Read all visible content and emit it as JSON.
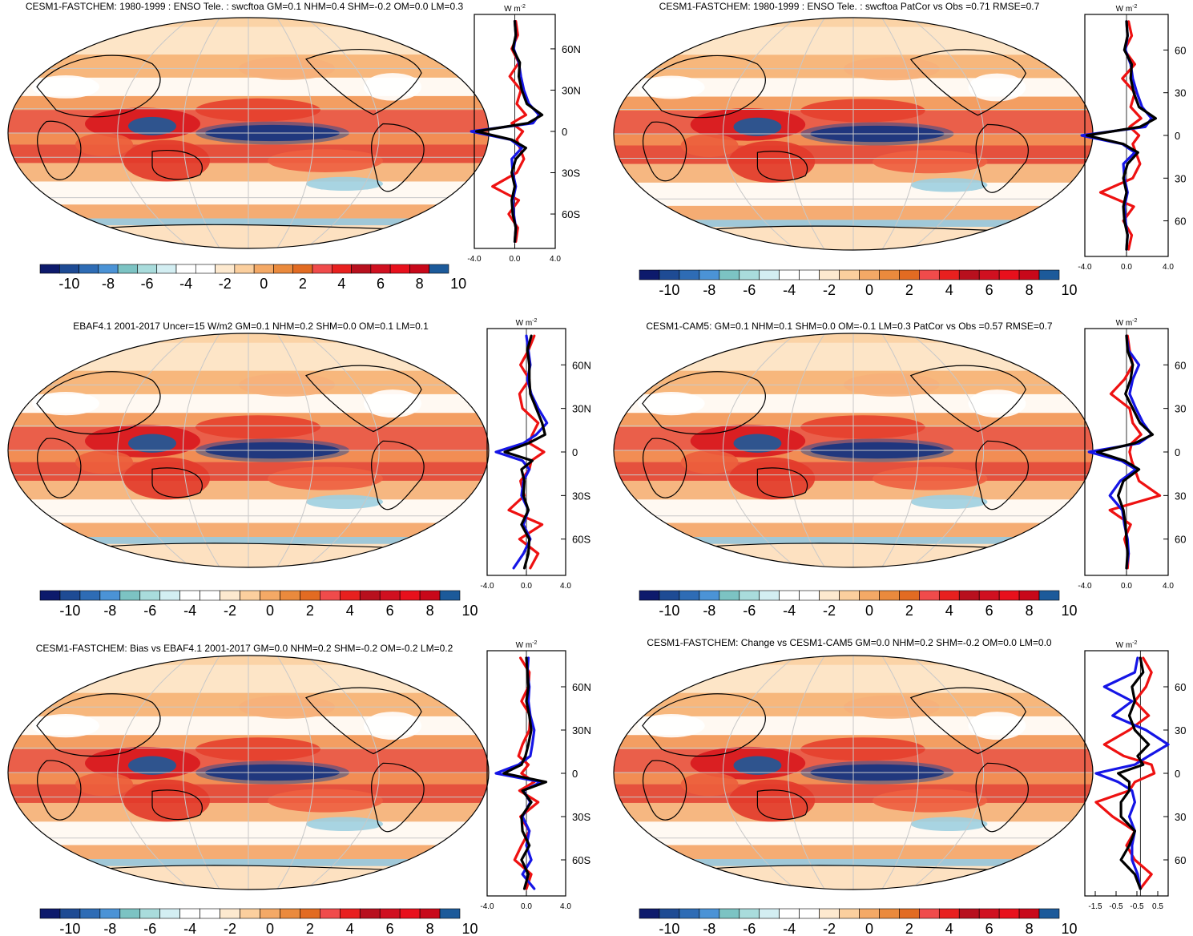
{
  "figure": {
    "colormap": [
      "#0d1a6c",
      "#1e4b94",
      "#2e6cb5",
      "#4b93d6",
      "#7cc3c3",
      "#a9dcdc",
      "#d3eef2",
      "#ffffff",
      "#ffffff",
      "#fde9cf",
      "#fbcf9e",
      "#f4a966",
      "#ea8a3d",
      "#e26b22",
      "#f04b4b",
      "#e8201f",
      "#b8101e",
      "#d01020",
      "#e8101c",
      "#c8081a",
      "#1c5a9a"
    ],
    "colorbar_ticks": [
      "-10",
      "-8",
      "-6",
      "-4",
      "-2",
      "0",
      "2",
      "4",
      "6",
      "8",
      "10"
    ],
    "unit_label": "W m",
    "unit_exponent": "-2",
    "series_colors": {
      "red": "#ee1111",
      "blue": "#1515e6",
      "black": "#000000"
    }
  },
  "chart_data": [
    {
      "type": "heatmap",
      "panel": "top-left",
      "title": "CESM1-FASTCHEM: 1980-1999 : ENSO Tele. : swcftoa GM=0.1 NHM=0.4 SHM=-0.2 OM=0.0 LM=0.3",
      "colorbar_ticks": [
        "-10",
        "-8",
        "-6",
        "-4",
        "-2",
        "0",
        "2",
        "4",
        "6",
        "8",
        "10"
      ],
      "zonal_profile": {
        "lat_ticks": [
          "60N",
          "30N",
          "0",
          "30S",
          "60S"
        ],
        "x_ticks": [
          "-4.0",
          "0.0",
          "4.0"
        ],
        "xlim": [
          -4,
          4
        ],
        "series": [
          {
            "name": "red",
            "lat": [
              80,
              70,
              60,
              50,
              40,
              30,
              20,
              12,
              6,
              0,
              -6,
              -12,
              -20,
              -30,
              -40,
              -50,
              -60,
              -70,
              -80
            ],
            "values": [
              0.1,
              0.3,
              -0.3,
              0.4,
              -0.5,
              0.6,
              0.2,
              1.1,
              -0.3,
              0.8,
              0.2,
              0.5,
              0.9,
              0.2,
              -2.2,
              0.4,
              -0.6,
              0.3,
              0.1
            ]
          },
          {
            "name": "blue",
            "lat": [
              80,
              70,
              60,
              50,
              40,
              30,
              20,
              12,
              6,
              0,
              -6,
              -12,
              -20,
              -30,
              -40,
              -50,
              -60,
              -70,
              -80
            ],
            "values": [
              0,
              0.1,
              -0.1,
              0.4,
              0.6,
              0.9,
              1.4,
              2.4,
              1.8,
              -4.3,
              -0.4,
              0.7,
              -0.3,
              -0.2,
              0.1,
              -0.2,
              -0.1,
              0.1,
              0
            ]
          },
          {
            "name": "black",
            "lat": [
              80,
              70,
              60,
              50,
              40,
              30,
              20,
              12,
              6,
              0,
              -6,
              -12,
              -20,
              -30,
              -40,
              -50,
              -60,
              -70,
              -80
            ],
            "values": [
              0,
              0.1,
              -0.2,
              0.5,
              0.4,
              0.7,
              1.2,
              2.7,
              1.3,
              -3.8,
              -0.3,
              1.1,
              0.1,
              -0.3,
              0,
              -0.3,
              -0.2,
              0.1,
              0
            ]
          }
        ]
      }
    },
    {
      "type": "heatmap",
      "panel": "top-right",
      "title": "CESM1-FASTCHEM: 1980-1999 : ENSO Tele. : swcftoa PatCor vs Obs =0.71 RMSE=0.7",
      "colorbar_ticks": [
        "-10",
        "-8",
        "-6",
        "-4",
        "-2",
        "0",
        "2",
        "4",
        "6",
        "8",
        "10"
      ],
      "zonal_profile": {
        "lat_ticks": [
          "60",
          "30",
          "0",
          "30",
          "60"
        ],
        "x_ticks": [
          "-4.0",
          "0.0",
          "4.0"
        ],
        "xlim": [
          -4,
          4
        ],
        "series": [
          {
            "name": "red",
            "lat": [
              80,
              70,
              60,
              50,
              40,
              30,
              20,
              12,
              6,
              0,
              -6,
              -12,
              -20,
              -30,
              -40,
              -50,
              -60,
              -70,
              -80
            ],
            "values": [
              0.2,
              0.5,
              -0.2,
              0.8,
              -0.4,
              0.8,
              0.4,
              1.4,
              0.3,
              1.2,
              0.6,
              0.9,
              1.3,
              0.6,
              -2.5,
              0.7,
              -0.3,
              0.5,
              0.2
            ]
          },
          {
            "name": "blue",
            "lat": [
              80,
              70,
              60,
              50,
              40,
              30,
              20,
              12,
              6,
              0,
              -6,
              -12,
              -20,
              -30,
              -40,
              -50,
              -60,
              -70,
              -80
            ],
            "values": [
              0,
              0.1,
              -0.1,
              0.4,
              0.6,
              1,
              1.5,
              2.4,
              1.8,
              -4.3,
              -0.4,
              0.8,
              -0.3,
              -0.2,
              0.1,
              -0.2,
              -0.1,
              0.1,
              0
            ]
          },
          {
            "name": "black",
            "lat": [
              80,
              70,
              60,
              50,
              40,
              30,
              20,
              12,
              6,
              0,
              -6,
              -12,
              -20,
              -30,
              -40,
              -50,
              -60,
              -70,
              -80
            ],
            "values": [
              0,
              0.1,
              -0.2,
              0.5,
              0.4,
              0.7,
              1.2,
              2.8,
              1.3,
              -3.8,
              -0.3,
              1.1,
              0.1,
              -0.3,
              0,
              -0.3,
              -0.2,
              0.1,
              0
            ]
          }
        ]
      }
    },
    {
      "type": "heatmap",
      "panel": "middle-left",
      "title": "EBAF4.1 2001-2017 Uncer=15 W/m2 GM=0.1 NHM=0.2 SHM=0.0 OM=0.1 LM=0.1",
      "colorbar_ticks": [
        "-10",
        "-8",
        "-6",
        "-4",
        "-2",
        "0",
        "2",
        "4",
        "6",
        "8",
        "10"
      ],
      "zonal_profile": {
        "lat_ticks": [
          "60N",
          "30N",
          "0",
          "30S",
          "60S"
        ],
        "x_ticks": [
          "-4.0",
          "0.0",
          "4.0"
        ],
        "xlim": [
          -4,
          4
        ],
        "series": [
          {
            "name": "red",
            "lat": [
              80,
              70,
              60,
              50,
              40,
              30,
              20,
              12,
              6,
              0,
              -6,
              -12,
              -20,
              -30,
              -40,
              -50,
              -60,
              -70,
              -80
            ],
            "values": [
              0.8,
              0.2,
              -0.6,
              0.3,
              -0.7,
              -0.4,
              1.2,
              0.6,
              0.3,
              1.8,
              0.5,
              0.3,
              -0.6,
              -0.2,
              -1.8,
              1.6,
              -0.7,
              1.2,
              0.4
            ]
          },
          {
            "name": "blue",
            "lat": [
              80,
              70,
              60,
              50,
              40,
              30,
              20,
              12,
              6,
              0,
              -6,
              -12,
              -20,
              -30,
              -40,
              -50,
              -60,
              -70,
              -80
            ],
            "values": [
              0,
              0.2,
              0.4,
              0.1,
              0.5,
              1.2,
              2.1,
              1,
              -0.3,
              -3.1,
              -0.4,
              0.3,
              -0.3,
              -0.5,
              0.2,
              -0.3,
              0.4,
              -0.3,
              -1.3
            ]
          },
          {
            "name": "black",
            "lat": [
              80,
              70,
              60,
              50,
              40,
              30,
              20,
              12,
              6,
              0,
              -6,
              -12,
              -20,
              -30,
              -40,
              -50,
              -60,
              -70,
              -80
            ],
            "values": [
              0.5,
              0.1,
              0.3,
              0.3,
              0.4,
              1.0,
              1.6,
              1.9,
              0.2,
              -2.2,
              0.6,
              -0.5,
              -0.2,
              -0.3,
              0.2,
              -0.5,
              0.3,
              0.2,
              -0.2
            ]
          }
        ]
      }
    },
    {
      "type": "heatmap",
      "panel": "middle-right",
      "title": "CESM1-CAM5: GM=0.1 NHM=0.1 SHM=0.0 OM=-0.1 LM=0.3 PatCor vs Obs =0.57 RMSE=0.7",
      "colorbar_ticks": [
        "-10",
        "-8",
        "-6",
        "-4",
        "-2",
        "0",
        "2",
        "4",
        "6",
        "8",
        "10"
      ],
      "zonal_profile": {
        "lat_ticks": [
          "60",
          "30",
          "0",
          "30",
          "60"
        ],
        "x_ticks": [
          "-4.0",
          "0.0",
          "4.0"
        ],
        "xlim": [
          -4,
          4
        ],
        "series": [
          {
            "name": "red",
            "lat": [
              80,
              70,
              60,
              50,
              40,
              30,
              20,
              12,
              6,
              0,
              -6,
              -12,
              -20,
              -30,
              -40,
              -50,
              -60,
              -70,
              -80
            ],
            "values": [
              0.1,
              0.3,
              0.6,
              -0.2,
              -1.5,
              0.3,
              0.6,
              1.4,
              0.5,
              0.3,
              0.5,
              0.8,
              1.2,
              3.2,
              -1.6,
              0.4,
              -0.2,
              0.2,
              0.1
            ]
          },
          {
            "name": "blue",
            "lat": [
              80,
              70,
              60,
              50,
              40,
              30,
              20,
              12,
              6,
              0,
              -6,
              -12,
              -20,
              -30,
              -40,
              -50,
              -60,
              -70,
              -80
            ],
            "values": [
              0,
              0.2,
              1.2,
              0.6,
              0.3,
              0.9,
              1.6,
              2.4,
              1.2,
              -3.6,
              -0.5,
              0.9,
              -0.6,
              -1.6,
              -0.4,
              -0.2,
              0.1,
              0.2,
              0
            ]
          },
          {
            "name": "black",
            "lat": [
              80,
              70,
              60,
              50,
              40,
              30,
              20,
              12,
              6,
              0,
              -6,
              -12,
              -20,
              -30,
              -40,
              -50,
              -60,
              -70,
              -80
            ],
            "values": [
              0,
              0.1,
              0.6,
              0.4,
              -0.1,
              0.6,
              1.3,
              2.5,
              0.8,
              -2.8,
              -0.2,
              1.2,
              -0.3,
              -0.8,
              -0.3,
              -0.1,
              0,
              0.1,
              0
            ]
          }
        ]
      }
    },
    {
      "type": "heatmap",
      "panel": "bottom-left",
      "title": "CESM1-FASTCHEM: Bias vs EBAF4.1 2001-2017 GM=0.0 NHM=0.2 SHM=-0.2 OM=-0.2 LM=0.2",
      "colorbar_ticks": [
        "-10",
        "-8",
        "-6",
        "-4",
        "-2",
        "0",
        "2",
        "4",
        "6",
        "8",
        "10"
      ],
      "zonal_profile": {
        "lat_ticks": [
          "60N",
          "30N",
          "0",
          "30S",
          "60S"
        ],
        "x_ticks": [
          "-4.0",
          "0.0",
          "4.0"
        ],
        "xlim": [
          -4,
          4
        ],
        "series": [
          {
            "name": "red",
            "lat": [
              80,
              70,
              60,
              50,
              40,
              30,
              20,
              12,
              6,
              0,
              -6,
              -12,
              -20,
              -30,
              -40,
              -50,
              -60,
              -70,
              -80
            ],
            "values": [
              -0.6,
              0.3,
              0.2,
              -0.5,
              0.4,
              0.3,
              -0.4,
              -0.8,
              0.2,
              -0.5,
              0.8,
              -0.7,
              1.2,
              -0.6,
              0.3,
              -0.5,
              -1.2,
              0.5,
              0
            ]
          },
          {
            "name": "blue",
            "lat": [
              80,
              70,
              60,
              50,
              40,
              30,
              20,
              12,
              6,
              0,
              -6,
              -12,
              -20,
              -30,
              -40,
              -50,
              -60,
              -70,
              -80
            ],
            "values": [
              0.2,
              0.1,
              0.3,
              0.2,
              0.4,
              0.8,
              0.6,
              0.4,
              -0.8,
              -3.1,
              1.5,
              -0.3,
              0.4,
              -0.4,
              0.3,
              0,
              0.5,
              -0.4,
              0.8
            ]
          },
          {
            "name": "black",
            "lat": [
              80,
              70,
              60,
              50,
              40,
              30,
              20,
              12,
              6,
              0,
              -6,
              -12,
              -20,
              -30,
              -40,
              -50,
              -60,
              -70,
              -80
            ],
            "values": [
              0,
              0.1,
              0.2,
              0,
              0.3,
              0.5,
              0.2,
              -0.1,
              -0.5,
              -2.3,
              2.0,
              -0.4,
              0.5,
              -0.5,
              -0.4,
              0.3,
              -0.5,
              0.2,
              -0.2
            ]
          }
        ]
      }
    },
    {
      "type": "heatmap",
      "panel": "bottom-right",
      "title": "CESM1-FASTCHEM: Change vs CESM1-CAM5 GM=0.0 NHM=0.2 SHM=-0.2 OM=0.0 LM=0.0",
      "colorbar_ticks": [
        "-10",
        "-8",
        "-6",
        "-4",
        "-2",
        "0",
        "2",
        "4",
        "6",
        "8",
        "10"
      ],
      "zonal_profile": {
        "lat_ticks": [
          "60",
          "30",
          "0",
          "30",
          "60"
        ],
        "x_ticks": [
          "-1.5",
          "-0.5",
          "-0.5",
          "0.5"
        ],
        "xlim": [
          -2.0,
          1.0
        ],
        "series": [
          {
            "name": "red",
            "lat": [
              80,
              70,
              60,
              50,
              40,
              30,
              20,
              12,
              6,
              0,
              -6,
              -12,
              -20,
              -30,
              -40,
              -50,
              -60,
              -70,
              -80
            ],
            "values": [
              0.1,
              0.4,
              0.2,
              -0.2,
              0.3,
              -0.4,
              -1.3,
              -0.6,
              0.4,
              0.5,
              -0.2,
              -0.4,
              -1.6,
              -1.0,
              -0.2,
              -0.5,
              -0.2,
              0.4,
              0
            ]
          },
          {
            "name": "blue",
            "lat": [
              80,
              70,
              60,
              50,
              40,
              30,
              20,
              12,
              6,
              0,
              -6,
              -12,
              -20,
              -30,
              -40,
              -50,
              -60,
              -70,
              -80
            ],
            "values": [
              -0.1,
              -0.2,
              -1.3,
              -0.3,
              -1.0,
              0.2,
              1.0,
              0.3,
              -0.2,
              -1.6,
              -0.8,
              -0.3,
              -0.2,
              -0.4,
              -0.2,
              -0.3,
              -0.3,
              -0.1,
              0
            ]
          },
          {
            "name": "black",
            "lat": [
              80,
              70,
              60,
              50,
              40,
              30,
              20,
              12,
              6,
              0,
              -6,
              -12,
              -20,
              -30,
              -40,
              -50,
              -60,
              -70,
              -80
            ],
            "values": [
              0,
              0.1,
              -0.3,
              -0.2,
              -0.4,
              -0.2,
              0.3,
              -0.1,
              0.1,
              -0.8,
              -0.4,
              -0.4,
              -0.7,
              -0.7,
              -0.2,
              -0.4,
              -0.7,
              -0.2,
              0
            ]
          }
        ]
      }
    }
  ]
}
